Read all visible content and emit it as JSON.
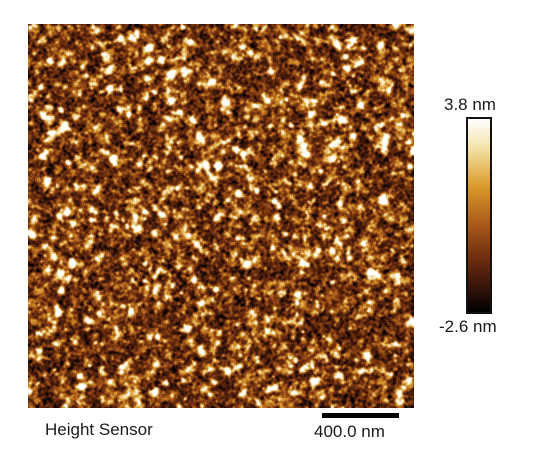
{
  "image": {
    "colormap_stops": [
      "#000000",
      "#3a160a",
      "#6e2e0f",
      "#a8581a",
      "#d99a2a",
      "#f4e3a8",
      "#ffffff"
    ]
  },
  "colorbar": {
    "max_label": "3.8 nm",
    "min_label": "-2.6 nm"
  },
  "channel_label": "Height Sensor",
  "scale_bar": {
    "label": "400.0 nm"
  }
}
